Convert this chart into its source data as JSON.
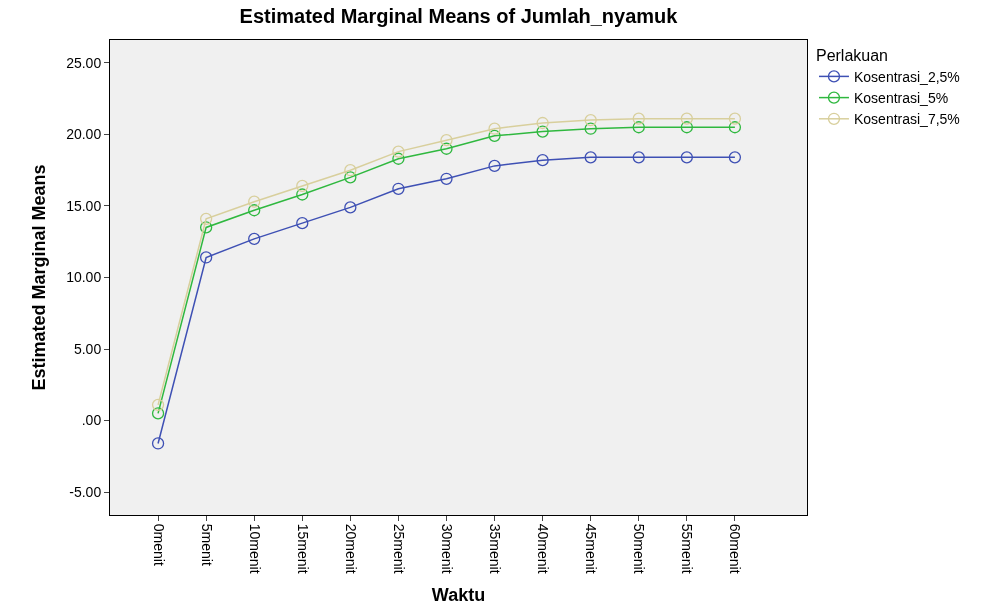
{
  "chart_data": {
    "type": "line",
    "title": "Estimated Marginal Means of Jumlah_nyamuk",
    "xlabel": "Waktu",
    "ylabel": "Estimated Marginal Means",
    "legend_title": "Perlakuan",
    "categories": [
      "0menit",
      "5menit",
      "10menit",
      "15menit",
      "20menit",
      "25menit",
      "30menit",
      "35menit",
      "40menit",
      "45menit",
      "50menit",
      "55menit",
      "60menit"
    ],
    "series": [
      {
        "name": "Kosentrasi_2,5%",
        "color": "#3e50b4",
        "values": [
          -1.6,
          11.4,
          12.7,
          13.8,
          14.9,
          16.2,
          16.9,
          17.8,
          18.2,
          18.4,
          18.4,
          18.4,
          18.4
        ]
      },
      {
        "name": "Kosentrasi_5%",
        "color": "#2fb83f",
        "values": [
          0.5,
          13.5,
          14.7,
          15.8,
          17.0,
          18.3,
          19.0,
          19.9,
          20.2,
          20.4,
          20.5,
          20.5,
          20.5
        ]
      },
      {
        "name": "Kosentrasi_7,5%",
        "color": "#d8cf9c",
        "values": [
          1.1,
          14.1,
          15.3,
          16.4,
          17.5,
          18.8,
          19.6,
          20.4,
          20.8,
          21.0,
          21.1,
          21.1,
          21.1
        ]
      }
    ],
    "ylim": [
      -6.6,
      26.6
    ],
    "yticks": [
      {
        "value": -5,
        "label": "-5.00"
      },
      {
        "value": 0,
        "label": ".00"
      },
      {
        "value": 5,
        "label": "5.00"
      },
      {
        "value": 10,
        "label": "10.00"
      },
      {
        "value": 15,
        "label": "15.00"
      },
      {
        "value": 20,
        "label": "20.00"
      },
      {
        "value": 25,
        "label": "25.00"
      }
    ],
    "grid": false,
    "legend": "top right",
    "marker": "circle",
    "line_style": "solid"
  }
}
